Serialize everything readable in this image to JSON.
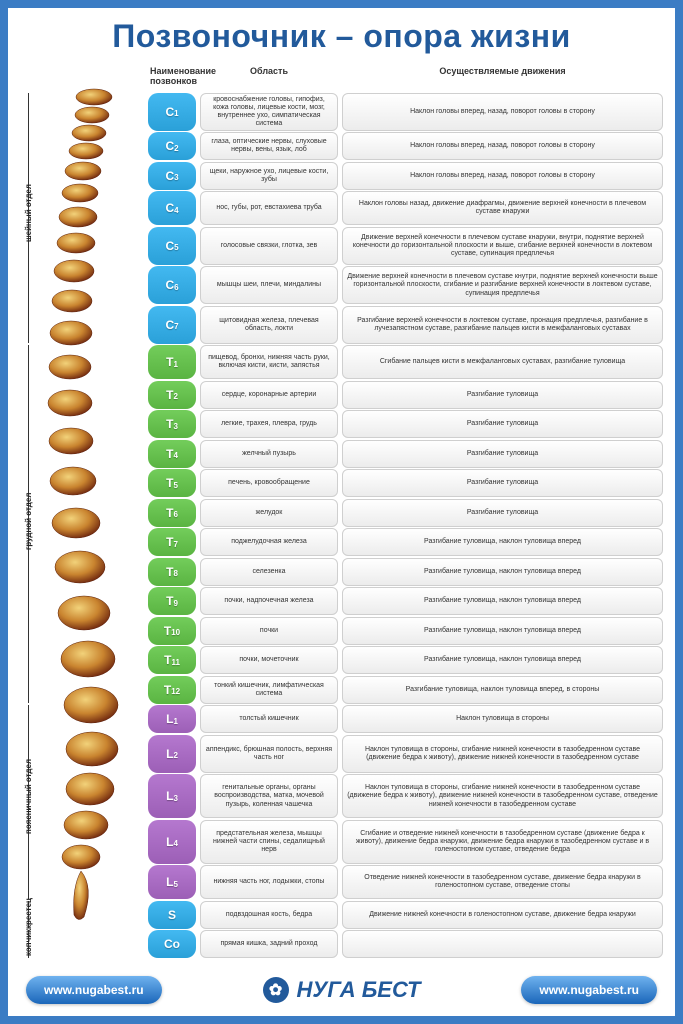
{
  "title": "Позвоночник – опора жизни",
  "frame_border_color": "#3b7cc4",
  "title_color": "#225a9b",
  "headers": {
    "name": "Наименование позвонков",
    "area": "Область",
    "move": "Осуществляемые движения"
  },
  "label_colors": {
    "C": "#2aa0d8",
    "T": "#5ab442",
    "L": "#9c5fb6",
    "S": "#2aa0d8",
    "Co": "#2aa0d8"
  },
  "cell_bg_from": "#ffffff",
  "cell_bg_to": "#ececec",
  "cell_border": "#cfcfcf",
  "sections": [
    {
      "label": "шейный отдел",
      "from": 0,
      "to": 6
    },
    {
      "label": "грудной отдел",
      "from": 7,
      "to": 18
    },
    {
      "label": "поясничный отдел",
      "from": 19,
      "to": 23
    },
    {
      "label": "крестец",
      "from": 24,
      "to": 24
    },
    {
      "label": "копчик",
      "from": 25,
      "to": 25
    }
  ],
  "vertebrae": [
    {
      "id": "C1",
      "group": "C",
      "area": "кровоснабжение головы, гипофиз, кожа головы, лицевые кости, мозг, внутреннее ухо, симпатическая система",
      "move": "Наклон головы вперед, назад, поворот головы в сторону"
    },
    {
      "id": "C2",
      "group": "C",
      "area": "глаза, оптические нервы, слуховые нервы, вены, язык, лоб",
      "move": "Наклон головы вперед, назад, поворот головы в сторону"
    },
    {
      "id": "C3",
      "group": "C",
      "area": "щеки, наружное ухо, лицевые кости, зубы",
      "move": "Наклон головы вперед, назад, поворот головы в сторону"
    },
    {
      "id": "C4",
      "group": "C",
      "area": "нос, губы, рот, евстахиева труба",
      "move": "Наклон головы назад, движение диафрагмы, движение верхней конечности в плечевом суставе кнаружи"
    },
    {
      "id": "C5",
      "group": "C",
      "area": "голосовые связки, глотка, зев",
      "move": "Движение верхней конечности в плечевом суставе кнаружи, внутри, поднятие верхней конечности до горизонтальной плоскости и выше, сгибание верхней конечности в локтевом суставе, супинация предплечья"
    },
    {
      "id": "C6",
      "group": "C",
      "area": "мышцы шеи, плечи, миндалины",
      "move": "Движение верхней конечности в плечевом суставе кнутри, поднятие верхней конечности выше горизонтальной плоскости, сгибание и разгибание верхней конечности в локтевом суставе, супинация предплечья"
    },
    {
      "id": "C7",
      "group": "C",
      "area": "щитовидная железа, плечевая область, локти",
      "move": "Разгибание верхней конечности в локтевом суставе, пронация предплечья, разгибание в лучезапястном суставе, разгибание пальцев кисти в межфаланговых суставах"
    },
    {
      "id": "T1",
      "group": "T",
      "area": "пищевод, бронхи, нижняя часть руки, включая кисти, кисти, запястья",
      "move": "Сгибание пальцев кисти в межфаланговых суставах, разгибание туловища"
    },
    {
      "id": "T2",
      "group": "T",
      "area": "сердце, коронарные артерии",
      "move": "Разгибание туловища"
    },
    {
      "id": "T3",
      "group": "T",
      "area": "легкие, трахея, плевра, грудь",
      "move": "Разгибание туловища"
    },
    {
      "id": "T4",
      "group": "T",
      "area": "желчный пузырь",
      "move": "Разгибание туловища"
    },
    {
      "id": "T5",
      "group": "T",
      "area": "печень, кровообращение",
      "move": "Разгибание туловища"
    },
    {
      "id": "T6",
      "group": "T",
      "area": "желудок",
      "move": "Разгибание туловища"
    },
    {
      "id": "T7",
      "group": "T",
      "area": "поджелудочная железа",
      "move": "Разгибание туловища, наклон туловища вперед"
    },
    {
      "id": "T8",
      "group": "T",
      "area": "селезенка",
      "move": "Разгибание туловища, наклон туловища вперед"
    },
    {
      "id": "T9",
      "group": "T",
      "area": "почки, надпочечная железа",
      "move": "Разгибание туловища, наклон туловища вперед"
    },
    {
      "id": "T10",
      "group": "T",
      "area": "почки",
      "move": "Разгибание туловища, наклон туловища вперед"
    },
    {
      "id": "T11",
      "group": "T",
      "area": "почки, мочеточник",
      "move": "Разгибание туловища, наклон туловища вперед"
    },
    {
      "id": "T12",
      "group": "T",
      "area": "тонкий кишечник, лимфатическая система",
      "move": "Разгибание туловища, наклон туловища вперед, в стороны"
    },
    {
      "id": "L1",
      "group": "L",
      "area": "толстый кишечник",
      "move": "Наклон туловища в стороны"
    },
    {
      "id": "L2",
      "group": "L",
      "area": "аппендикс, брюшная полость, верхняя часть ног",
      "move": "Наклон туловища в стороны, сгибание нижней конечности в тазобедренном суставе (движение бедра к животу), движение нижней конечности в тазобедренном суставе"
    },
    {
      "id": "L3",
      "group": "L",
      "area": "генитальные органы, органы воспроизводства, матка, мочевой пузырь, коленная чашечка",
      "move": "Наклон туловища в стороны, сгибание нижней конечности в тазобедренном суставе (движение бедра к животу), движение нижней конечности в тазобедренном суставе, отведение нижней конечности в тазобедренном суставе"
    },
    {
      "id": "L4",
      "group": "L",
      "area": "предстательная железа, мышцы нижней части спины, седалищный нерв",
      "move": "Сгибание и отведение нижней конечности в тазобедренном суставе (движение бедра к животу), движение бедра кнаружи, движение бедра кнаружи в тазобедренном суставе и в голеностопном суставе, отведение бедра"
    },
    {
      "id": "L5",
      "group": "L",
      "area": "нижняя часть ног, лодыжки, стопы",
      "move": "Отведение нижней конечности в тазобедренном суставе, движение бедра кнаружи в голеностопном суставе, отведение стопы"
    },
    {
      "id": "S",
      "group": "S",
      "area": "подвздошная кость, бедра",
      "move": "Движение нижней конечности в голеностопном суставе, движение бедра кнаружи"
    },
    {
      "id": "Co",
      "group": "Co",
      "area": "прямая кишка, задний проход",
      "move": ""
    }
  ],
  "footer": {
    "left_url": "www.nugabest.ru",
    "right_url": "www.nugabest.ru",
    "brand": "НУГА БЕСТ",
    "brand_icon": "✿"
  },
  "row_height_base": 28,
  "font_sizes": {
    "title": 32,
    "header": 9,
    "label": 12,
    "cell": 7,
    "section": 8,
    "footer_pill": 12,
    "brand": 22
  }
}
